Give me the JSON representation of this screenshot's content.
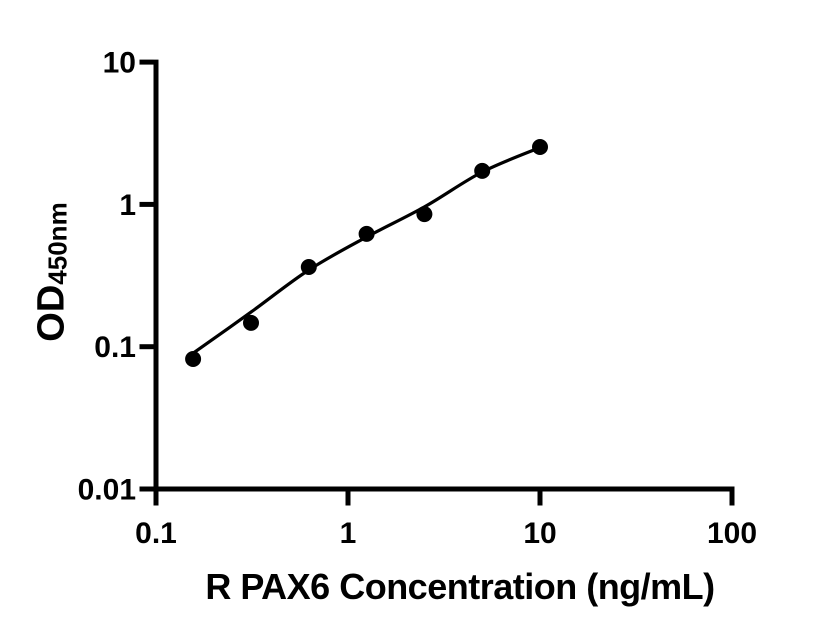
{
  "chart_data": {
    "type": "scatter",
    "title": "",
    "xlabel": "R PAX6 Concentration (ng/mL)",
    "ylabel": "OD",
    "ylabel_subscript": "450nm",
    "x_scale": "log",
    "y_scale": "log",
    "xlim": [
      0.1,
      100
    ],
    "ylim": [
      0.01,
      10
    ],
    "x_ticks": {
      "values": [
        0.1,
        1,
        10,
        100
      ],
      "labels": [
        "0.1",
        "1",
        "10",
        "100"
      ]
    },
    "y_ticks": {
      "values": [
        0.01,
        0.1,
        1,
        10
      ],
      "labels": [
        "0.01",
        "0.1",
        "1",
        "10"
      ]
    },
    "grid": false,
    "legend": "none",
    "series": [
      {
        "name": "standard-points",
        "type": "scatter",
        "marker": "filled-circle",
        "color": "#000000",
        "x": [
          0.156,
          0.3125,
          0.625,
          1.25,
          2.5,
          5,
          10
        ],
        "y": [
          0.082,
          0.147,
          0.363,
          0.62,
          0.855,
          1.72,
          2.53
        ]
      },
      {
        "name": "fit-curve",
        "type": "line",
        "color": "#000000",
        "x": [
          0.156,
          0.3125,
          0.625,
          1.25,
          2.5,
          5,
          10
        ],
        "y": [
          0.09,
          0.175,
          0.346,
          0.59,
          0.96,
          1.69,
          2.51
        ]
      }
    ]
  },
  "colors": {
    "foreground": "#000000",
    "background": "#ffffff"
  }
}
